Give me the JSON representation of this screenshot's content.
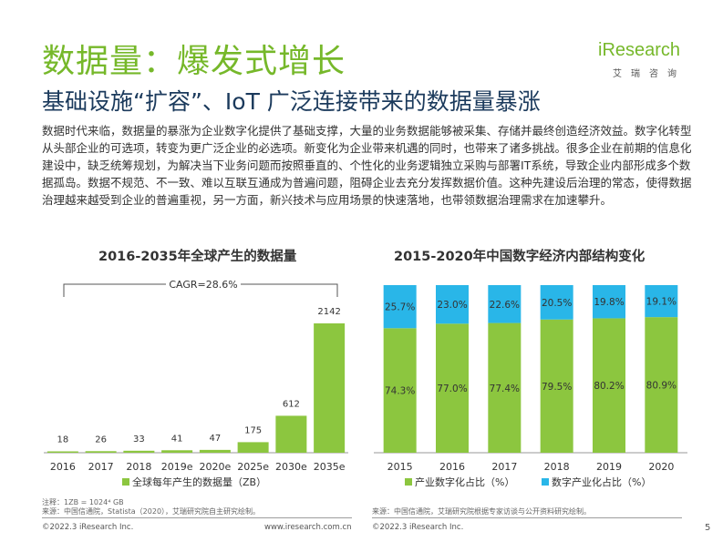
{
  "page": {
    "title": "数据量：爆发式增长",
    "subtitle": "基础设施“扩容”、IoT 广泛连接带来的数据量暴涨",
    "body": "数据时代来临，数据量的暴涨为企业数字化提供了基础支撑，大量的业务数据能够被采集、存储并最终创造经济效益。数字化转型从头部企业的可选项，转变为更广泛企业的必选项。新变化为企业带来机遇的同时，也带来了诸多挑战。很多企业在前期的信息化建设中，缺乏统筹规划，为解决当下业务问题而按照垂直的、个性化的业务逻辑独立采购与部署IT系统，导致企业内部形成多个数据孤岛。数据不规范、不一致、难以互联互通成为普遍问题，阻碍企业去充分发挥数据价值。这种先建设后治理的常态，使得数据治理越来越受到企业的普遍重视，另一方面，新兴技术与应用场景的快速落地，也带领数据治理需求在加速攀升。",
    "logo_text": "iResearch",
    "logo_tagline": "艾瑞咨询",
    "page_number": "5"
  },
  "colors": {
    "accent_green": "#76b82a",
    "bar_green": "#8cc63f",
    "cyan": "#29b6e8",
    "navy": "#1b3a5c"
  },
  "left_panel": {
    "note_line1": "注释：1ZB = 1024⁴ GB",
    "note_line2": "来源：中国信通院，Statista（2020），艾瑞研究院自主研究绘制。",
    "footer_copyright": "©2022.3 iResearch Inc.",
    "footer_url": "www.iresearch.com.cn"
  },
  "right_panel": {
    "note_line1": "来源：中国信通院，艾瑞研究院根据专家访谈与公开资料研究绘制。",
    "footer_copyright": "©2022.3 iResearch Inc."
  },
  "chart_data": [
    {
      "type": "bar",
      "title": "2016-2035年全球产生的数据量",
      "categories": [
        "2016",
        "2017",
        "2018",
        "2019e",
        "2020e",
        "2025e",
        "2030e",
        "2035e"
      ],
      "series": [
        {
          "name": "全球每年产生的数据量（ZB）",
          "values": [
            18,
            26,
            33,
            41,
            47,
            175,
            612,
            2142
          ]
        }
      ],
      "ylim": [
        0,
        2142
      ],
      "annotation": "CAGR=28.6%",
      "legend": "bottom"
    },
    {
      "type": "bar",
      "stacked": true,
      "percent": true,
      "title": "2015-2020年中国数字经济内部结构变化",
      "categories": [
        "2015",
        "2016",
        "2017",
        "2018",
        "2019",
        "2020"
      ],
      "series": [
        {
          "name": "产业数字化占比（%）",
          "values": [
            74.3,
            77.0,
            77.4,
            79.5,
            80.2,
            80.9
          ],
          "labels": [
            "74.3%",
            "77.0%",
            "77.4%",
            "79.5%",
            "80.2%",
            "80.9%"
          ]
        },
        {
          "name": "数字产业化占比（%）",
          "values": [
            25.7,
            23.0,
            22.6,
            20.5,
            19.8,
            19.1
          ],
          "labels": [
            "25.7%",
            "23.0%",
            "22.6%",
            "20.5%",
            "19.8%",
            "19.1%"
          ]
        }
      ],
      "ylim": [
        0,
        100
      ],
      "legend": "bottom"
    }
  ]
}
